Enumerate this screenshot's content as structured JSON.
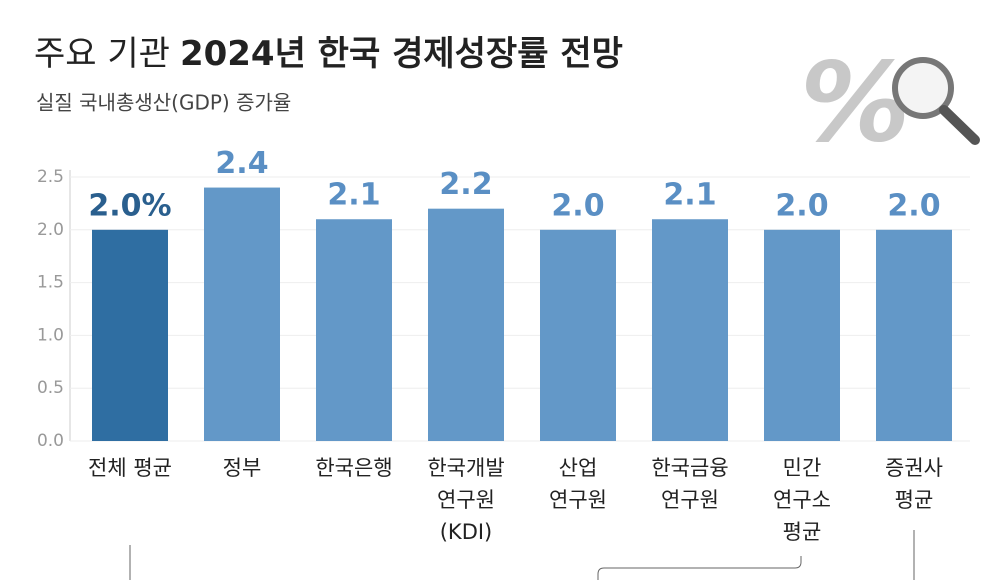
{
  "chart_data": {
    "type": "bar",
    "title": [
      "주요 기관",
      "2024년 한국 경제성장률 전망"
    ],
    "subtitle": "실질 국내총생산(GDP) 증가율",
    "categories": [
      [
        "전체 평균"
      ],
      [
        "정부"
      ],
      [
        "한국은행"
      ],
      [
        "한국개발",
        "연구원",
        "(KDI)"
      ],
      [
        "산업",
        "연구원"
      ],
      [
        "한국금융",
        "연구원"
      ],
      [
        "민간",
        "연구소",
        "평균"
      ],
      [
        "증권사",
        "평균"
      ]
    ],
    "values": [
      2.0,
      2.4,
      2.1,
      2.2,
      2.0,
      2.1,
      2.0,
      2.0
    ],
    "value_labels": [
      "2.0%",
      "2.4",
      "2.1",
      "2.2",
      "2.0",
      "2.1",
      "2.0",
      "2.0"
    ],
    "colors": [
      "#2f6ea2",
      "#6398c8",
      "#6398c8",
      "#6398c8",
      "#6398c8",
      "#6398c8",
      "#6398c8",
      "#6398c8"
    ],
    "ylim": [
      0,
      2.5
    ],
    "yticks": [
      {
        "value": 0,
        "label": "0.0"
      },
      0.5,
      {
        "value": 1,
        "label": "1.0"
      },
      1.5,
      {
        "value": 2,
        "label": "2.0"
      },
      2.5
    ],
    "grid": true
  }
}
